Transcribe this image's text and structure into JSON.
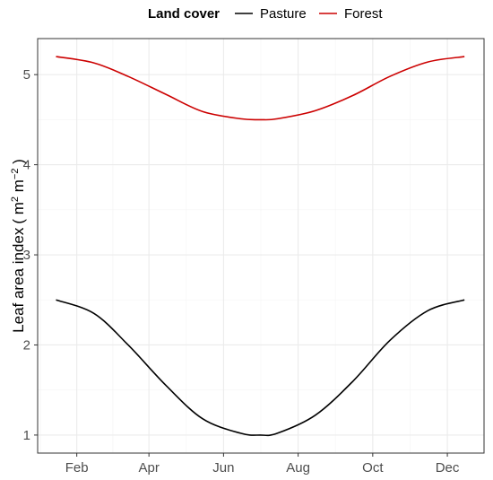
{
  "chart_data": {
    "type": "line",
    "xlabel": "",
    "ylabel_text": "Leaf area index",
    "ylabel_unit": "( m",
    "ylabel_sup1": "2",
    "ylabel_unit2": " m",
    "ylabel_sup2": "−2",
    "ylabel_close": " )",
    "xlim": [
      "2001-12-31",
      "2002-12-31"
    ],
    "ylim": [
      0.8,
      5.4
    ],
    "x_ticks": [
      {
        "label": "Feb",
        "date": "2002-02-01"
      },
      {
        "label": "Apr",
        "date": "2002-04-01"
      },
      {
        "label": "Jun",
        "date": "2002-06-01"
      },
      {
        "label": "Aug",
        "date": "2002-08-01"
      },
      {
        "label": "Oct",
        "date": "2002-10-01"
      },
      {
        "label": "Dec",
        "date": "2002-12-01"
      }
    ],
    "y_ticks": [
      {
        "label": "1",
        "value": 1
      },
      {
        "label": "2",
        "value": 2
      },
      {
        "label": "3",
        "value": 3
      },
      {
        "label": "4",
        "value": 4
      },
      {
        "label": "5",
        "value": 5
      }
    ],
    "grid": true,
    "legend": {
      "title": "Land cover",
      "position": "top",
      "entries": [
        {
          "label": "Pasture",
          "color": "#000000"
        },
        {
          "label": "Forest",
          "color": "#cc0000"
        }
      ]
    },
    "series": [
      {
        "name": "Pasture",
        "color": "#000000",
        "points": [
          {
            "x": "2002-01-15",
            "y": 2.5
          },
          {
            "x": "2002-02-15",
            "y": 2.35
          },
          {
            "x": "2002-03-15",
            "y": 2.0
          },
          {
            "x": "2002-04-15",
            "y": 1.55
          },
          {
            "x": "2002-05-15",
            "y": 1.18
          },
          {
            "x": "2002-06-15",
            "y": 1.02
          },
          {
            "x": "2002-07-01",
            "y": 1.0
          },
          {
            "x": "2002-07-15",
            "y": 1.02
          },
          {
            "x": "2002-08-15",
            "y": 1.22
          },
          {
            "x": "2002-09-15",
            "y": 1.6
          },
          {
            "x": "2002-10-15",
            "y": 2.05
          },
          {
            "x": "2002-11-15",
            "y": 2.38
          },
          {
            "x": "2002-12-15",
            "y": 2.5
          }
        ]
      },
      {
        "name": "Forest",
        "color": "#cc0000",
        "points": [
          {
            "x": "2002-01-15",
            "y": 5.2
          },
          {
            "x": "2002-02-15",
            "y": 5.13
          },
          {
            "x": "2002-03-15",
            "y": 4.98
          },
          {
            "x": "2002-04-15",
            "y": 4.78
          },
          {
            "x": "2002-05-15",
            "y": 4.59
          },
          {
            "x": "2002-06-15",
            "y": 4.51
          },
          {
            "x": "2002-07-01",
            "y": 4.5
          },
          {
            "x": "2002-07-15",
            "y": 4.51
          },
          {
            "x": "2002-08-15",
            "y": 4.6
          },
          {
            "x": "2002-09-15",
            "y": 4.77
          },
          {
            "x": "2002-10-15",
            "y": 4.98
          },
          {
            "x": "2002-11-15",
            "y": 5.14
          },
          {
            "x": "2002-12-15",
            "y": 5.2
          }
        ]
      }
    ]
  }
}
